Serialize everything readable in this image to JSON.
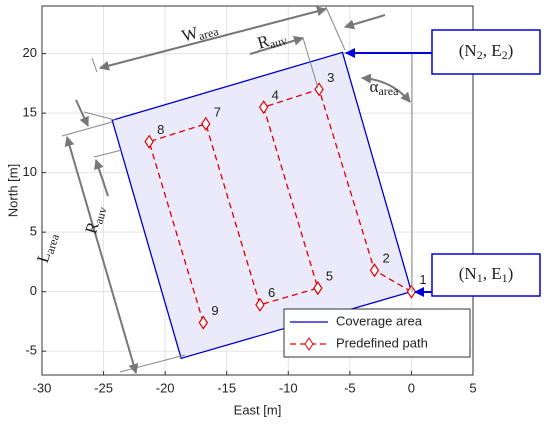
{
  "chart_data": {
    "type": "line",
    "xlabel": "East [m]",
    "ylabel": "North [m]",
    "xlim": [
      -30,
      5
    ],
    "xticks": [
      -30,
      -25,
      -20,
      -15,
      -10,
      -5,
      0,
      5
    ],
    "ylim": [
      -7,
      24
    ],
    "yticks": [
      -5,
      0,
      5,
      10,
      15,
      20
    ],
    "grid": true,
    "legend": "lower right",
    "series": [
      {
        "name": "Coverage area",
        "color": "#0000cc",
        "fill": "#e8e8fa",
        "x": [
          0,
          -5.6,
          -24.3,
          -18.7,
          0
        ],
        "values": [
          0,
          20.1,
          14.4,
          -5.6,
          0
        ]
      },
      {
        "name": "Predefined path",
        "color": "#e00000",
        "linestyle": "dashed",
        "marker": "diamond",
        "x": [
          0,
          -3.0,
          -7.5,
          -12.0,
          -7.6,
          -12.3,
          -16.7,
          -21.3,
          -16.9
        ],
        "values": [
          0,
          1.8,
          17.0,
          15.5,
          0.3,
          -1.1,
          14.1,
          12.6,
          -2.6
        ],
        "point_labels": [
          "1",
          "2",
          "3",
          "4",
          "5",
          "6",
          "7",
          "8",
          "9"
        ]
      }
    ],
    "annotations": [
      {
        "text": "W",
        "sub": "area"
      },
      {
        "text": "R",
        "sub": "auv"
      },
      {
        "text": "α",
        "sub": "area"
      },
      {
        "text": "L",
        "sub": "area"
      },
      {
        "text": "R",
        "sub": "auv"
      }
    ],
    "callouts": [
      {
        "parts": [
          "(N",
          "2",
          ", E",
          "2",
          ")"
        ]
      },
      {
        "parts": [
          "(N",
          "1",
          ", E",
          "1",
          ")"
        ]
      }
    ]
  }
}
